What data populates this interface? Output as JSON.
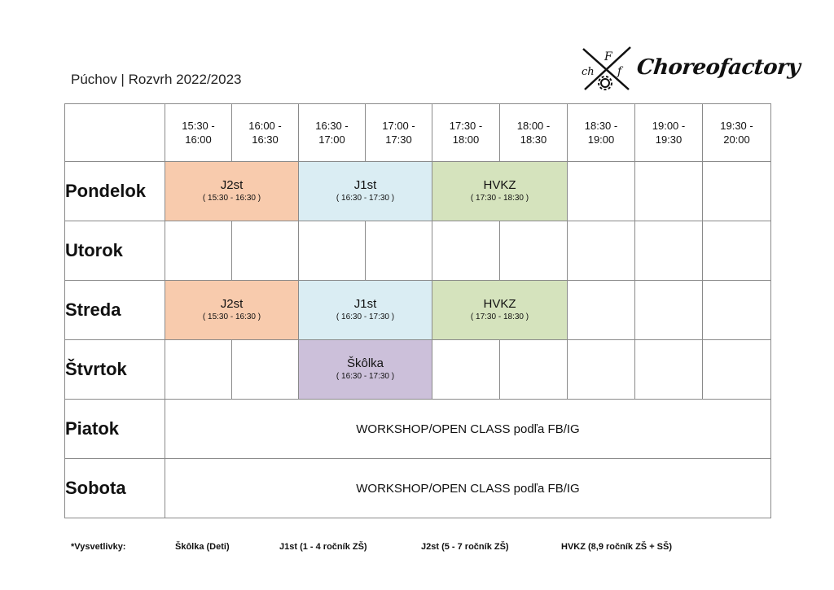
{
  "header": {
    "title": "Púchov | Rozvrh 2022/2023",
    "logo_text": "Choreofactory"
  },
  "schedule": {
    "time_slots": [
      "15:30 -\n16:00",
      "16:00 -\n16:30",
      "16:30 -\n17:00",
      "17:00 -\n17:30",
      "17:30 -\n18:00",
      "18:00 -\n18:30",
      "18:30 -\n19:00",
      "19:00 -\n19:30",
      "19:30 -\n20:00"
    ],
    "days": [
      "Pondelok",
      "Utorok",
      "Streda",
      "Štvrtok",
      "Piatok",
      "Sobota"
    ],
    "classes": {
      "pondelok_j2st": {
        "name": "J2st",
        "time": "( 15:30 - 16:30 )",
        "color": "#f8cbad"
      },
      "pondelok_j1st": {
        "name": "J1st",
        "time": "( 16:30 - 17:30 )",
        "color": "#daedf3"
      },
      "pondelok_hvkz": {
        "name": "HVKZ",
        "time": "( 17:30 - 18:30 )",
        "color": "#d5e3bd"
      },
      "streda_j2st": {
        "name": "J2st",
        "time": "( 15:30 - 16:30 )",
        "color": "#f8cbad"
      },
      "streda_j1st": {
        "name": "J1st",
        "time": "( 16:30 - 17:30 )",
        "color": "#daedf3"
      },
      "streda_hvkz": {
        "name": "HVKZ",
        "time": "( 17:30 - 18:30 )",
        "color": "#d5e3bd"
      },
      "stvrtok_skolka": {
        "name": "Škôlka",
        "time": "( 16:30 - 17:30 )",
        "color": "#ccc0da"
      }
    },
    "piatok_text": "WORKSHOP/OPEN CLASS podľa FB/IG",
    "sobota_text": "WORKSHOP/OPEN CLASS podľa FB/IG"
  },
  "legend": {
    "label": "*Vysvetlivky:",
    "skolka": "Škôlka (Deti)",
    "j1st": "J1st (1 - 4 ročník ZŠ)",
    "j2st": "J2st (5 - 7 ročník ZŠ)",
    "hvkz": "HVKZ (8,9 ročník ZŠ + SŠ)"
  }
}
